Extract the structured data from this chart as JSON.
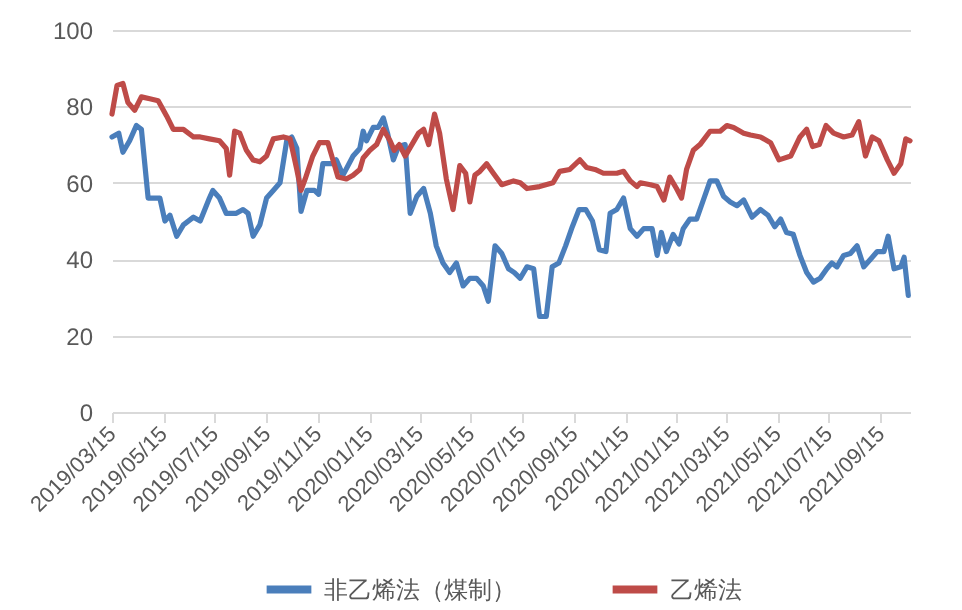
{
  "chart_data": {
    "type": "line",
    "xlim": [
      "2019-03-15",
      "2021-10-20"
    ],
    "ylim": [
      0,
      100
    ],
    "yticks": [
      0,
      20,
      40,
      60,
      80,
      100
    ],
    "xticks": [
      {
        "value": "2019-03-15",
        "label": "2019/03/15"
      },
      {
        "value": "2019-05-15",
        "label": "2019/05/15"
      },
      {
        "value": "2019-07-15",
        "label": "2019/07/15"
      },
      {
        "value": "2019-09-15",
        "label": "2019/09/15"
      },
      {
        "value": "2019-11-15",
        "label": "2019/11/15"
      },
      {
        "value": "2020-01-15",
        "label": "2020/01/15"
      },
      {
        "value": "2020-03-15",
        "label": "2020/03/15"
      },
      {
        "value": "2020-05-15",
        "label": "2020/05/15"
      },
      {
        "value": "2020-07-15",
        "label": "2020/07/15"
      },
      {
        "value": "2020-09-15",
        "label": "2020/09/15"
      },
      {
        "value": "2020-11-15",
        "label": "2020/11/15"
      },
      {
        "value": "2021-01-15",
        "label": "2021/01/15"
      },
      {
        "value": "2021-03-15",
        "label": "2021/03/15"
      },
      {
        "value": "2021-05-15",
        "label": "2021/05/15"
      },
      {
        "value": "2021-07-15",
        "label": "2021/07/15"
      },
      {
        "value": "2021-09-15",
        "label": "2021/09/15"
      }
    ],
    "grid": "y",
    "legend": "bottom",
    "line_style": "solid",
    "series": [
      {
        "name": "非乙烯法（煤制）",
        "color": "#4a7ebb",
        "x": [
          "2019-03-15",
          "2019-03-23",
          "2019-03-28",
          "2019-04-05",
          "2019-04-13",
          "2019-04-19",
          "2019-04-27",
          "2019-05-05",
          "2019-05-11",
          "2019-05-17",
          "2019-05-23",
          "2019-05-31",
          "2019-06-08",
          "2019-06-20",
          "2019-06-28",
          "2019-07-09",
          "2019-07-13",
          "2019-07-21",
          "2019-07-29",
          "2019-08-10",
          "2019-08-18",
          "2019-08-24",
          "2019-08-30",
          "2019-09-07",
          "2019-09-15",
          "2019-09-23",
          "2019-10-01",
          "2019-10-09",
          "2019-10-15",
          "2019-10-21",
          "2019-10-26",
          "2019-11-02",
          "2019-11-11",
          "2019-11-16",
          "2019-11-21",
          "2019-12-03",
          "2019-12-07",
          "2019-12-15",
          "2019-12-27",
          "2020-01-04",
          "2020-01-08",
          "2020-01-12",
          "2020-01-20",
          "2020-01-26",
          "2020-02-01",
          "2020-02-06",
          "2020-02-13",
          "2020-02-19",
          "2020-02-27",
          "2020-03-04",
          "2020-03-12",
          "2020-03-20",
          "2020-03-28",
          "2020-04-04",
          "2020-04-12",
          "2020-04-20",
          "2020-04-28",
          "2020-05-06",
          "2020-05-14",
          "2020-05-22",
          "2020-05-30",
          "2020-06-05",
          "2020-06-13",
          "2020-06-21",
          "2020-06-29",
          "2020-07-06",
          "2020-07-13",
          "2020-07-21",
          "2020-07-29",
          "2020-08-05",
          "2020-08-13",
          "2020-08-20",
          "2020-08-28",
          "2020-09-05",
          "2020-09-13",
          "2020-09-21",
          "2020-09-29",
          "2020-10-07",
          "2020-10-15",
          "2020-10-23",
          "2020-10-28",
          "2020-11-05",
          "2020-11-13",
          "2020-11-21",
          "2020-11-29",
          "2020-12-07",
          "2020-12-17",
          "2020-12-23",
          "2020-12-28",
          "2021-01-03",
          "2021-01-11",
          "2021-01-18",
          "2021-01-23",
          "2021-01-31",
          "2021-02-08",
          "2021-02-16",
          "2021-02-24",
          "2021-03-04",
          "2021-03-12",
          "2021-03-20",
          "2021-03-28",
          "2021-04-05",
          "2021-04-15",
          "2021-04-25",
          "2021-05-04",
          "2021-05-12",
          "2021-05-19",
          "2021-05-26",
          "2021-06-03",
          "2021-06-11",
          "2021-06-19",
          "2021-06-27",
          "2021-07-05",
          "2021-07-13",
          "2021-07-19",
          "2021-07-25",
          "2021-08-02",
          "2021-08-10",
          "2021-08-18",
          "2021-08-26",
          "2021-09-03",
          "2021-09-11",
          "2021-09-19",
          "2021-09-24",
          "2021-10-01",
          "2021-10-09",
          "2021-10-13",
          "2021-10-18"
        ],
        "values": [
          72,
          73,
          68,
          71,
          75,
          74,
          56,
          56,
          56,
          50,
          51.5,
          46,
          49,
          51,
          50,
          56,
          58,
          56,
          52,
          52,
          53,
          52,
          46,
          49,
          56,
          58,
          60,
          71,
          72,
          69,
          52.5,
          58,
          58,
          57,
          65,
          65,
          66,
          62,
          67,
          69,
          73.5,
          71,
          74.5,
          74.5,
          77,
          73,
          66,
          69.5,
          70,
          52,
          56.5,
          58.5,
          52,
          43.5,
          39,
          36.5,
          39,
          33,
          35,
          35,
          33,
          29,
          43.5,
          41.5,
          37.5,
          36.5,
          35,
          38,
          37.5,
          25,
          25,
          38,
          39,
          43.5,
          48.5,
          53,
          53,
          50,
          42.5,
          42,
          52,
          53,
          56,
          48,
          46,
          48,
          48,
          41,
          47,
          42,
          46.5,
          44,
          48,
          50.5,
          50.5,
          55.5,
          60.5,
          60.5,
          56.5,
          55,
          54,
          55.5,
          51,
          53,
          51.5,
          48.5,
          50.5,
          47,
          46.5,
          41,
          36.5,
          34,
          35,
          37.5,
          39,
          38,
          41,
          41.5,
          43.5,
          38,
          40,
          42,
          42,
          46,
          37.5,
          38,
          40.5,
          30.5
        ]
      },
      {
        "name": "乙烯法",
        "color": "#be4b48",
        "x": [
          "2019-03-15",
          "2019-03-21",
          "2019-03-28",
          "2019-04-03",
          "2019-04-11",
          "2019-04-19",
          "2019-04-29",
          "2019-05-09",
          "2019-05-19",
          "2019-05-27",
          "2019-06-08",
          "2019-06-20",
          "2019-06-28",
          "2019-07-09",
          "2019-07-21",
          "2019-07-29",
          "2019-08-02",
          "2019-08-08",
          "2019-08-14",
          "2019-08-22",
          "2019-08-30",
          "2019-09-07",
          "2019-09-15",
          "2019-09-23",
          "2019-10-05",
          "2019-10-13",
          "2019-10-21",
          "2019-10-26",
          "2019-10-31",
          "2019-11-09",
          "2019-11-17",
          "2019-11-27",
          "2019-12-03",
          "2019-12-09",
          "2019-12-19",
          "2019-12-27",
          "2020-01-04",
          "2020-01-08",
          "2020-01-16",
          "2020-01-24",
          "2020-02-01",
          "2020-02-09",
          "2020-02-14",
          "2020-02-20",
          "2020-02-27",
          "2020-03-06",
          "2020-03-14",
          "2020-03-20",
          "2020-03-26",
          "2020-04-02",
          "2020-04-08",
          "2020-04-16",
          "2020-04-24",
          "2020-05-02",
          "2020-05-09",
          "2020-05-14",
          "2020-05-20",
          "2020-05-26",
          "2020-06-03",
          "2020-06-11",
          "2020-06-21",
          "2020-07-05",
          "2020-07-13",
          "2020-07-21",
          "2020-08-05",
          "2020-08-21",
          "2020-08-29",
          "2020-09-10",
          "2020-09-22",
          "2020-09-30",
          "2020-10-10",
          "2020-10-20",
          "2020-10-28",
          "2020-11-05",
          "2020-11-13",
          "2020-11-21",
          "2020-11-29",
          "2020-12-03",
          "2020-12-15",
          "2020-12-23",
          "2020-12-31",
          "2021-01-07",
          "2021-01-15",
          "2021-01-21",
          "2021-01-27",
          "2021-02-04",
          "2021-02-12",
          "2021-02-24",
          "2021-03-08",
          "2021-03-16",
          "2021-03-24",
          "2021-04-05",
          "2021-04-13",
          "2021-04-25",
          "2021-05-07",
          "2021-05-17",
          "2021-05-31",
          "2021-06-11",
          "2021-06-19",
          "2021-06-26",
          "2021-07-04",
          "2021-07-12",
          "2021-07-21",
          "2021-08-02",
          "2021-08-12",
          "2021-08-20",
          "2021-08-28",
          "2021-09-05",
          "2021-09-13",
          "2021-09-23",
          "2021-10-01",
          "2021-10-09",
          "2021-10-15",
          "2021-10-20"
        ],
        "values": [
          78,
          85.5,
          86,
          81,
          79,
          82.5,
          82,
          81.5,
          77.5,
          74,
          74,
          72,
          72,
          71.5,
          71,
          69,
          62,
          73.5,
          73,
          68.5,
          66,
          65.5,
          67,
          71.5,
          72,
          71.5,
          63.5,
          58,
          61,
          67,
          70.5,
          70.5,
          66,
          61.5,
          61,
          62,
          63.5,
          66.5,
          68.5,
          70,
          74,
          71,
          68.5,
          70,
          67,
          70,
          73,
          74,
          70,
          78,
          73,
          61,
          53,
          64.5,
          62.5,
          55,
          62,
          63,
          65,
          62.5,
          59.5,
          60.5,
          60,
          58.5,
          59,
          60,
          63,
          63.5,
          66,
          64,
          63.5,
          62.5,
          62.5,
          62.5,
          63,
          60.5,
          59,
          60,
          59.5,
          59,
          55.5,
          61.5,
          58.5,
          56,
          63.5,
          68.5,
          70,
          73.5,
          73.5,
          75,
          74.5,
          73,
          72.5,
          72,
          70.5,
          66,
          67,
          72,
          74,
          69.5,
          70,
          75,
          73,
          72,
          72.5,
          76,
          67,
          72,
          71,
          66,
          62.5,
          65,
          71.5,
          71
        ]
      }
    ]
  }
}
